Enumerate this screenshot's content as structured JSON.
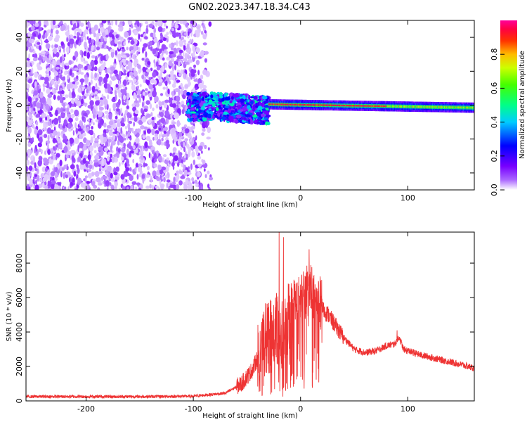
{
  "title": "GN02.2023.347.18.34.C43",
  "chart_data": [
    {
      "type": "heatmap",
      "xlabel": "Height of straight line (km)",
      "ylabel": "Frequency (Hz)",
      "xlim": [
        -256,
        162
      ],
      "ylim": [
        -50,
        50
      ],
      "xticks": [
        -200,
        -100,
        0,
        100
      ],
      "yticks": [
        -40,
        -20,
        0,
        20,
        40
      ],
      "colorbar": {
        "label": "Normalized spectral amplitude",
        "range": [
          0,
          1
        ],
        "ticks": [
          0.0,
          0.2,
          0.4,
          0.6,
          0.8
        ],
        "colormap": [
          "#ffffff",
          "#8800ff",
          "#0000ff",
          "#00ffff",
          "#00ff00",
          "#ffff00",
          "#ff0000",
          "#ff00aa"
        ]
      },
      "regions": [
        {
          "x_range": [
            -256,
            -82
          ],
          "freq_range": [
            -50,
            50
          ],
          "amplitude_range": [
            0.02,
            0.12
          ],
          "pattern": "broadband noise speckle"
        },
        {
          "x_range": [
            -105,
            -30
          ],
          "freq_range": [
            -10,
            6
          ],
          "amplitude_range": [
            0.1,
            0.5
          ],
          "pattern": "mixed band"
        },
        {
          "x_range": [
            -30,
            162
          ],
          "freq_center": [
            -1.5,
            0.5
          ],
          "freq_halfwidth": 2,
          "amplitude_range": [
            0.4,
            1.0
          ],
          "pattern": "narrow tonal line"
        }
      ],
      "grid": false
    },
    {
      "type": "line",
      "xlabel": "Height of straight line (km)",
      "ylabel": "SNR (10 * v/v)",
      "xlim": [
        -256,
        162
      ],
      "ylim": [
        0,
        9800
      ],
      "xticks": [
        -200,
        -100,
        0,
        100
      ],
      "yticks": [
        0,
        2000,
        4000,
        6000,
        8000
      ],
      "color": "#ee3333",
      "envelope": {
        "x": [
          -256,
          -150,
          -100,
          -70,
          -55,
          -45,
          -38,
          -32,
          -26,
          -22,
          -18,
          -14,
          -10,
          -6,
          -2,
          2,
          6,
          10,
          14,
          18,
          22,
          26,
          30,
          40,
          50,
          60,
          70,
          80,
          88,
          92,
          96,
          110,
          130,
          150,
          162
        ],
        "y": [
          250,
          250,
          270,
          450,
          1000,
          1800,
          2800,
          3600,
          3800,
          4500,
          3500,
          4200,
          5500,
          5700,
          5800,
          6000,
          6400,
          6600,
          6000,
          5800,
          5200,
          5000,
          4600,
          3700,
          3000,
          2800,
          2900,
          3200,
          3300,
          3700,
          3000,
          2700,
          2400,
          2100,
          1900
        ]
      },
      "peaks": [
        {
          "x": -20,
          "y": 9800
        },
        {
          "x": -16,
          "y": 9500
        },
        {
          "x": 8,
          "y": 8800
        },
        {
          "x": 90,
          "y": 4100
        }
      ],
      "grid": false
    }
  ]
}
